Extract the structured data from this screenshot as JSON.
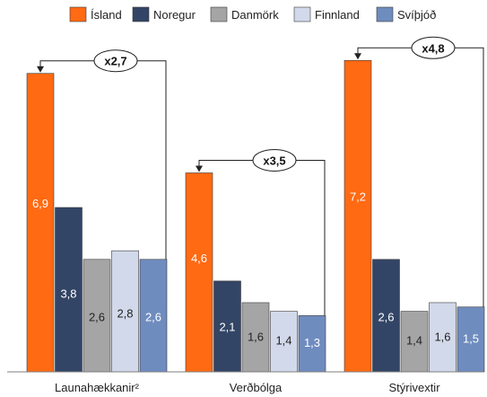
{
  "chart_data": {
    "type": "bar",
    "title": "",
    "xlabel": "",
    "ylabel": "",
    "ylim": [
      0,
      7.6
    ],
    "grid": false,
    "legend_position": "top",
    "categories": [
      "Launahækkanir²",
      "Verðbólga",
      "Stýrivextir"
    ],
    "series": [
      {
        "name": "Ísland",
        "color": "#ff6a13",
        "label_color": "#ffffff",
        "values": [
          6.9,
          4.6,
          7.2
        ]
      },
      {
        "name": "Noregur",
        "color": "#334566",
        "label_color": "#ffffff",
        "values": [
          3.8,
          2.1,
          2.6
        ]
      },
      {
        "name": "Danmörk",
        "color": "#a5a5a5",
        "label_color": "#222222",
        "values": [
          2.6,
          1.6,
          1.4
        ]
      },
      {
        "name": "Finnland",
        "color": "#d2d9ea",
        "label_color": "#222222",
        "values": [
          2.8,
          1.4,
          1.6
        ]
      },
      {
        "name": "Svíþjóð",
        "color": "#6f8cbf",
        "label_color": "#ffffff",
        "values": [
          2.6,
          1.3,
          1.5
        ]
      }
    ],
    "value_labels": [
      [
        "6,9",
        "4,6",
        "7,2"
      ],
      [
        "3,8",
        "2,1",
        "2,6"
      ],
      [
        "2,6",
        "1,6",
        "1,4"
      ],
      [
        "2,8",
        "1,4",
        "1,6"
      ],
      [
        "2,6",
        "1,3",
        "1,5"
      ]
    ],
    "annotations": [
      {
        "category": "Launahækkanir²",
        "text": "x2,7"
      },
      {
        "category": "Verðbólga",
        "text": "x3,5"
      },
      {
        "category": "Stýrivextir",
        "text": "x4,8"
      }
    ]
  }
}
